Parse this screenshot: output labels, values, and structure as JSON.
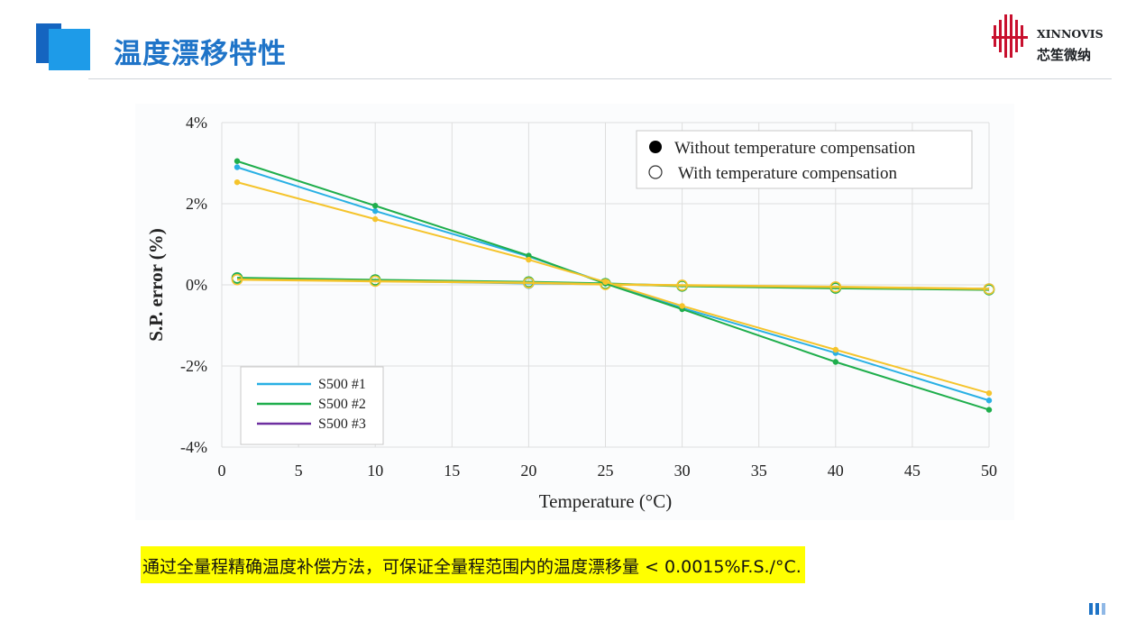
{
  "header": {
    "title": "温度漂移特性",
    "logo_en": "XINNOVIS",
    "logo_cn": "芯笙微纳"
  },
  "colors": {
    "s1": "#29b0e4",
    "s2": "#1fae4c",
    "s3": "#f5c42c",
    "legend_s3": "#6e2fa0",
    "title": "#1f74c8"
  },
  "chart_data": {
    "type": "line",
    "xlabel": "Temperature (°C)",
    "ylabel": "S.P. error (%)",
    "xlim": [
      0,
      50
    ],
    "ylim": [
      -4,
      4
    ],
    "xticks": [
      "0",
      "5",
      "10",
      "15",
      "20",
      "25",
      "30",
      "35",
      "40",
      "45",
      "50"
    ],
    "yticks": [
      "4%",
      "2%",
      "0%",
      "-2%",
      "-4%"
    ],
    "grid": true,
    "x": [
      1,
      10,
      20,
      25,
      30,
      40,
      50
    ],
    "series_legend": [
      "S500 #1",
      "S500 #2",
      "S500 #3"
    ],
    "marker_legend": {
      "filled": "Without temperature compensation",
      "open": "With temperature compensation"
    },
    "series": [
      {
        "name": "S500 #1",
        "compensated": false,
        "values": [
          2.9,
          1.82,
          0.7,
          0.05,
          -0.57,
          -1.68,
          -2.85
        ]
      },
      {
        "name": "S500 #2",
        "compensated": false,
        "values": [
          3.05,
          1.95,
          0.72,
          0.03,
          -0.6,
          -1.9,
          -3.08
        ]
      },
      {
        "name": "S500 #3",
        "compensated": false,
        "values": [
          2.53,
          1.62,
          0.62,
          0.07,
          -0.52,
          -1.6,
          -2.67
        ]
      },
      {
        "name": "S500 #1",
        "compensated": true,
        "values": [
          0.15,
          0.1,
          0.04,
          0.02,
          -0.02,
          -0.06,
          -0.1
        ]
      },
      {
        "name": "S500 #2",
        "compensated": true,
        "values": [
          0.17,
          0.12,
          0.07,
          0.03,
          -0.03,
          -0.08,
          -0.12
        ]
      },
      {
        "name": "S500 #3",
        "compensated": true,
        "values": [
          0.13,
          0.09,
          0.05,
          0.01,
          -0.01,
          -0.05,
          -0.1
        ]
      }
    ]
  },
  "footer": {
    "caption": "通过全量程精确温度补偿方法，可保证全量程范围内的温度漂移量 < 0.0015%F.S./°C."
  }
}
